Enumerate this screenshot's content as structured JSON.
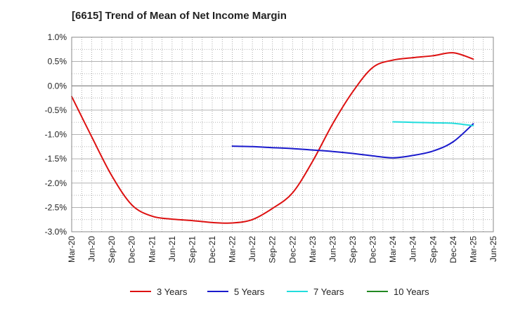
{
  "chart_data": {
    "type": "line",
    "title": "[6615]  Trend of Mean of Net Income Margin",
    "xlabel": "",
    "ylabel": "",
    "x_ticks": [
      "Mar-20",
      "Jun-20",
      "Sep-20",
      "Dec-20",
      "Mar-21",
      "Jun-21",
      "Sep-21",
      "Dec-21",
      "Mar-22",
      "Jun-22",
      "Sep-22",
      "Dec-22",
      "Mar-23",
      "Jun-23",
      "Sep-23",
      "Dec-23",
      "Mar-24",
      "Jun-24",
      "Sep-24",
      "Dec-24",
      "Mar-25",
      "Jun-25"
    ],
    "y_ticks": [
      "1.0%",
      "0.5%",
      "0.0%",
      "-0.5%",
      "-1.0%",
      "-1.5%",
      "-2.0%",
      "-2.5%",
      "-3.0%"
    ],
    "y_tick_values": [
      1.0,
      0.5,
      0.0,
      -0.5,
      -1.0,
      -1.5,
      -2.0,
      -2.5,
      -3.0
    ],
    "ylim": [
      -3.0,
      1.0
    ],
    "grid": true,
    "legend_position": "bottom",
    "series": [
      {
        "name": "3 Years",
        "color": "#dd1111",
        "x": [
          "Mar-20",
          "Jun-20",
          "Sep-20",
          "Dec-20",
          "Mar-21",
          "Jun-21",
          "Sep-21",
          "Dec-21",
          "Mar-22",
          "Jun-22",
          "Sep-22",
          "Dec-22",
          "Mar-23",
          "Jun-23",
          "Sep-23",
          "Dec-23",
          "Mar-24",
          "Jun-24",
          "Sep-24",
          "Dec-24",
          "Mar-25"
        ],
        "values": [
          -0.22,
          -1.05,
          -1.85,
          -2.45,
          -2.68,
          -2.74,
          -2.77,
          -2.81,
          -2.82,
          -2.75,
          -2.52,
          -2.2,
          -1.55,
          -0.78,
          -0.12,
          0.38,
          0.53,
          0.58,
          0.62,
          0.68,
          0.55
        ]
      },
      {
        "name": "5 Years",
        "color": "#1a1acc",
        "x": [
          "Mar-22",
          "Jun-22",
          "Sep-22",
          "Dec-22",
          "Mar-23",
          "Jun-23",
          "Sep-23",
          "Dec-23",
          "Mar-24",
          "Jun-24",
          "Sep-24",
          "Dec-24",
          "Mar-25"
        ],
        "values": [
          -1.24,
          -1.25,
          -1.27,
          -1.29,
          -1.32,
          -1.35,
          -1.39,
          -1.44,
          -1.48,
          -1.43,
          -1.34,
          -1.15,
          -0.78
        ]
      },
      {
        "name": "7 Years",
        "color": "#22dddd",
        "x": [
          "Mar-24",
          "Jun-24",
          "Sep-24",
          "Dec-24",
          "Mar-25"
        ],
        "values": [
          -0.74,
          -0.75,
          -0.76,
          -0.77,
          -0.82
        ]
      },
      {
        "name": "10 Years",
        "color": "#228822",
        "x": [],
        "values": []
      }
    ]
  }
}
